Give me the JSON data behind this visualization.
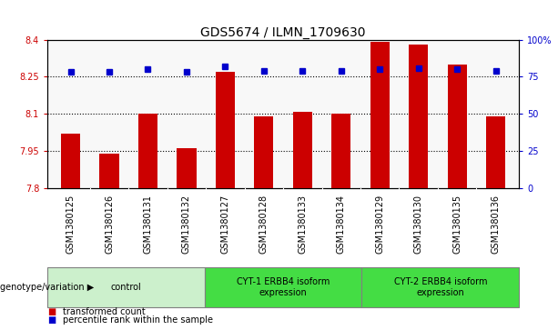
{
  "title": "GDS5674 / ILMN_1709630",
  "samples": [
    "GSM1380125",
    "GSM1380126",
    "GSM1380131",
    "GSM1380132",
    "GSM1380127",
    "GSM1380128",
    "GSM1380133",
    "GSM1380134",
    "GSM1380129",
    "GSM1380130",
    "GSM1380135",
    "GSM1380136"
  ],
  "bar_values": [
    8.02,
    7.94,
    8.1,
    7.96,
    8.27,
    8.09,
    8.11,
    8.1,
    8.39,
    8.38,
    8.3,
    8.09
  ],
  "dot_values": [
    78,
    78,
    80,
    78,
    82,
    79,
    79,
    79,
    80,
    81,
    80,
    79
  ],
  "ylim_left": [
    7.8,
    8.4
  ],
  "ylim_right": [
    0,
    100
  ],
  "yticks_left": [
    7.8,
    7.95,
    8.1,
    8.25,
    8.4
  ],
  "yticks_right": [
    0,
    25,
    50,
    75,
    100
  ],
  "ytick_labels_right": [
    "0",
    "25",
    "50",
    "75",
    "100%"
  ],
  "hlines": [
    7.95,
    8.1,
    8.25
  ],
  "bar_color": "#cc0000",
  "dot_color": "#0000cc",
  "bar_width": 0.5,
  "groups": [
    {
      "label": "control",
      "start": 0,
      "end": 3,
      "color": "#ccf0cc"
    },
    {
      "label": "CYT-1 ERBB4 isoform\nexpression",
      "start": 4,
      "end": 7,
      "color": "#44dd44"
    },
    {
      "label": "CYT-2 ERBB4 isoform\nexpression",
      "start": 8,
      "end": 11,
      "color": "#44dd44"
    }
  ],
  "xlabel_genotype": "genotype/variation",
  "legend_items": [
    {
      "label": "transformed count",
      "color": "#cc0000"
    },
    {
      "label": "percentile rank within the sample",
      "color": "#0000cc"
    }
  ],
  "title_fontsize": 10,
  "tick_fontsize": 7,
  "label_fontsize": 7.5,
  "plot_bg": "#f8f8f8",
  "tick_bg": "#cccccc"
}
